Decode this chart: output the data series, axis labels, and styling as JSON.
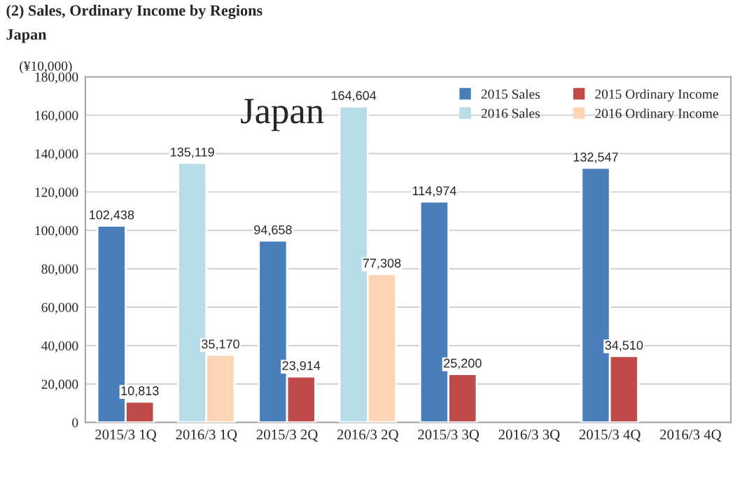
{
  "chart_data": {
    "type": "bar",
    "title": "Japan",
    "annotations": [
      "(2) Sales, Ordinary Income by Regions",
      "Japan"
    ],
    "ylabel": "(¥10,000)",
    "categories": [
      "2015/3 1Q",
      "2016/3 1Q",
      "2015/3 2Q",
      "2016/3 2Q",
      "2015/3 3Q",
      "2016/3 3Q",
      "2015/3 4Q",
      "2016/3 4Q"
    ],
    "series": [
      {
        "name": "2015 Sales",
        "color": "#4a7ebb",
        "values": [
          102438,
          null,
          94658,
          null,
          114974,
          null,
          132547,
          null
        ],
        "value_labels": [
          "102,438",
          null,
          "94,658",
          null,
          "114,974",
          null,
          "132,547",
          null
        ]
      },
      {
        "name": "2016 Sales",
        "color": "#b7dde8",
        "values": [
          null,
          135119,
          null,
          164604,
          null,
          null,
          null,
          null
        ],
        "value_labels": [
          null,
          "135,119",
          null,
          "164,604",
          null,
          null,
          null,
          null
        ]
      },
      {
        "name": "2015 Ordinary Income",
        "color": "#be4b48",
        "values": [
          10813,
          null,
          23914,
          null,
          25200,
          null,
          34510,
          null
        ],
        "value_labels": [
          "10,813",
          null,
          "23,914",
          null,
          "25,200",
          null,
          "34,510",
          null
        ]
      },
      {
        "name": "2016 Ordinary Income",
        "color": "#fcd5b5",
        "values": [
          null,
          35170,
          null,
          77308,
          null,
          null,
          null,
          null
        ],
        "value_labels": [
          null,
          "35,170",
          null,
          "77,308",
          null,
          null,
          null,
          null
        ]
      }
    ],
    "ylim": [
      0,
      180000
    ],
    "yticks": [
      {
        "value": 0,
        "label": "0"
      },
      {
        "value": 20000,
        "label": "20,000"
      },
      {
        "value": 40000,
        "label": "40,000"
      },
      {
        "value": 60000,
        "label": "60,000"
      },
      {
        "value": 80000,
        "label": "80,000"
      },
      {
        "value": 100000,
        "label": "100,000"
      },
      {
        "value": 120000,
        "label": "120,000"
      },
      {
        "value": 140000,
        "label": "140,000"
      },
      {
        "value": 160000,
        "label": "160,000"
      },
      {
        "value": 180000,
        "label": "180,000"
      }
    ],
    "grid": "y",
    "legend": "top right"
  }
}
